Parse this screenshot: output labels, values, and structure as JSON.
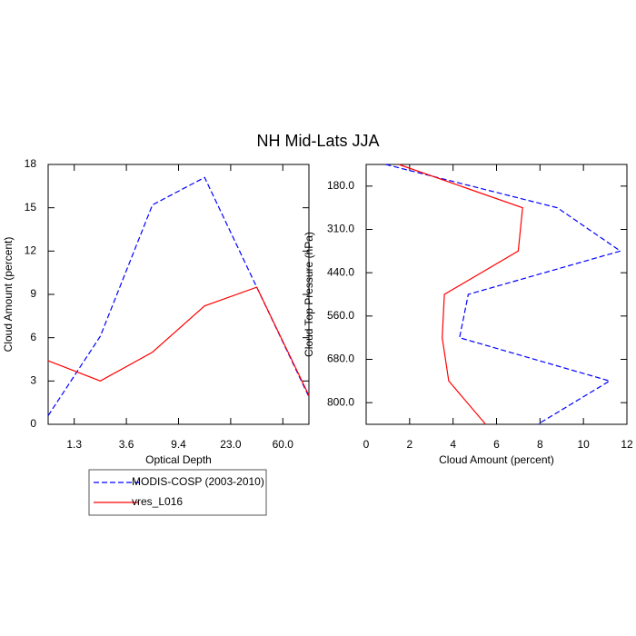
{
  "title": "NH Mid-Lats JJA",
  "chart_data": [
    {
      "type": "line",
      "xlabel": "Optical Depth",
      "ylabel": "Cloud Amount (percent)",
      "x": [
        0,
        1,
        2,
        3,
        4,
        5
      ],
      "xlim": [
        0,
        5
      ],
      "xticks": [
        {
          "value": 0.5,
          "label": "1.3"
        },
        {
          "value": 1.5,
          "label": "3.6"
        },
        {
          "value": 2.5,
          "label": "9.4"
        },
        {
          "value": 3.5,
          "label": "23.0"
        },
        {
          "value": 4.5,
          "label": "60.0"
        }
      ],
      "ylim": [
        0,
        18
      ],
      "yticks": [
        0,
        3,
        6,
        9,
        12,
        15,
        18
      ],
      "series": [
        {
          "name": "MODIS-COSP (2003-2010)",
          "color": "#0000ff",
          "dash": true,
          "values": [
            0.6,
            6.1,
            15.2,
            17.1,
            9.5,
            1.9
          ]
        },
        {
          "name": "vres_L016",
          "color": "#ff0000",
          "dash": false,
          "values": [
            4.4,
            3.0,
            5.0,
            8.2,
            9.5,
            2.0
          ]
        }
      ]
    },
    {
      "type": "line",
      "orientation": "horizontal",
      "xlabel": "Cloud Amount (percent)",
      "ylabel": "Cloud Top Pressure (hPa)",
      "y": [
        -0.5,
        0.5,
        1.5,
        2.5,
        3.5,
        4.5,
        5.5
      ],
      "ylim": [
        5.5,
        -0.5
      ],
      "yticks": [
        {
          "value": 0,
          "label": "180.0"
        },
        {
          "value": 1,
          "label": "310.0"
        },
        {
          "value": 2,
          "label": "440.0"
        },
        {
          "value": 3,
          "label": "560.0"
        },
        {
          "value": 4,
          "label": "680.0"
        },
        {
          "value": 5,
          "label": "800.0"
        }
      ],
      "xlim": [
        0,
        12
      ],
      "xticks": [
        0,
        2,
        4,
        6,
        8,
        10,
        12
      ],
      "series": [
        {
          "color": "#0000ff",
          "dash": true,
          "values": [
            0.9,
            8.8,
            11.7,
            4.7,
            4.3,
            11.2,
            7.9
          ]
        },
        {
          "color": "#ff0000",
          "dash": false,
          "values": [
            1.5,
            7.2,
            7.0,
            3.6,
            3.5,
            3.8,
            5.5
          ]
        }
      ]
    }
  ]
}
